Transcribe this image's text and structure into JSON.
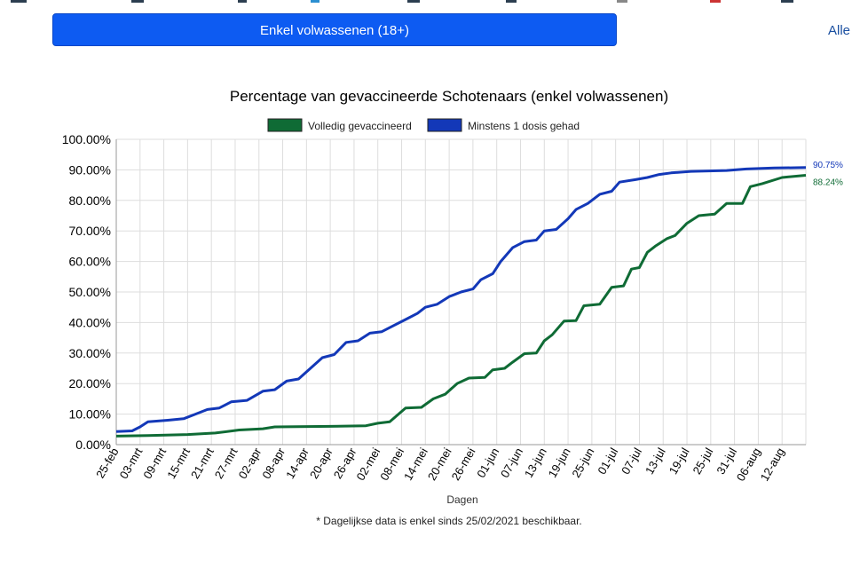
{
  "filter": {
    "button_label": "Enkel volwassenen (18+)",
    "all_label": "Alle"
  },
  "colors": {
    "button": "#0d5bf2",
    "full": "#0f6b35",
    "partial": "#1338b8",
    "grid": "#dddddd"
  },
  "chart_data": {
    "type": "line",
    "title": "Percentage van gevaccineerde Schotenaars (enkel volwassenen)",
    "xlabel": "Dagen",
    "ylabel": "",
    "footnote": "* Dagelijkse data is enkel sinds 25/02/2021 beschikbaar.",
    "legend_position": "top",
    "grid": true,
    "x_start": "2021-02-25",
    "x_end": "2021-08-18",
    "ylim": [
      0,
      100
    ],
    "y_ticks": [
      "0.00%",
      "10.00%",
      "20.00%",
      "30.00%",
      "40.00%",
      "50.00%",
      "60.00%",
      "70.00%",
      "80.00%",
      "90.00%",
      "100.00%"
    ],
    "x_ticks": [
      {
        "date": "2021-02-25",
        "label": "25-feb"
      },
      {
        "date": "2021-03-03",
        "label": "03-mrt"
      },
      {
        "date": "2021-03-09",
        "label": "09-mrt"
      },
      {
        "date": "2021-03-15",
        "label": "15-mrt"
      },
      {
        "date": "2021-03-21",
        "label": "21-mrt"
      },
      {
        "date": "2021-03-27",
        "label": "27-mrt"
      },
      {
        "date": "2021-04-02",
        "label": "02-apr"
      },
      {
        "date": "2021-04-08",
        "label": "08-apr"
      },
      {
        "date": "2021-04-14",
        "label": "14-apr"
      },
      {
        "date": "2021-04-20",
        "label": "20-apr"
      },
      {
        "date": "2021-04-26",
        "label": "26-apr"
      },
      {
        "date": "2021-05-02",
        "label": "02-mei"
      },
      {
        "date": "2021-05-08",
        "label": "08-mei"
      },
      {
        "date": "2021-05-14",
        "label": "14-mei"
      },
      {
        "date": "2021-05-20",
        "label": "20-mei"
      },
      {
        "date": "2021-05-26",
        "label": "26-mei"
      },
      {
        "date": "2021-06-01",
        "label": "01-jun"
      },
      {
        "date": "2021-06-07",
        "label": "07-jun"
      },
      {
        "date": "2021-06-13",
        "label": "13-jun"
      },
      {
        "date": "2021-06-19",
        "label": "19-jun"
      },
      {
        "date": "2021-06-25",
        "label": "25-jun"
      },
      {
        "date": "2021-07-01",
        "label": "01-jul"
      },
      {
        "date": "2021-07-07",
        "label": "07-jul"
      },
      {
        "date": "2021-07-13",
        "label": "13-jul"
      },
      {
        "date": "2021-07-19",
        "label": "19-jul"
      },
      {
        "date": "2021-07-25",
        "label": "25-jul"
      },
      {
        "date": "2021-07-31",
        "label": "31-jul"
      },
      {
        "date": "2021-08-06",
        "label": "06-aug"
      },
      {
        "date": "2021-08-12",
        "label": "12-aug"
      }
    ],
    "series": [
      {
        "name": "Volledig gevaccineerd",
        "color": "#0f6b35",
        "end_label": "88.24%",
        "points": [
          [
            "2021-02-25",
            2.8
          ],
          [
            "2021-03-05",
            3.0
          ],
          [
            "2021-03-15",
            3.3
          ],
          [
            "2021-03-22",
            3.8
          ],
          [
            "2021-03-28",
            4.8
          ],
          [
            "2021-04-03",
            5.2
          ],
          [
            "2021-04-06",
            5.8
          ],
          [
            "2021-04-20",
            6.0
          ],
          [
            "2021-04-29",
            6.2
          ],
          [
            "2021-05-02",
            7.0
          ],
          [
            "2021-05-05",
            7.5
          ],
          [
            "2021-05-09",
            12.0
          ],
          [
            "2021-05-13",
            12.2
          ],
          [
            "2021-05-16",
            15.0
          ],
          [
            "2021-05-19",
            16.5
          ],
          [
            "2021-05-22",
            20.0
          ],
          [
            "2021-05-25",
            21.8
          ],
          [
            "2021-05-29",
            22.0
          ],
          [
            "2021-05-31",
            24.5
          ],
          [
            "2021-06-03",
            25.0
          ],
          [
            "2021-06-05",
            27.0
          ],
          [
            "2021-06-08",
            29.8
          ],
          [
            "2021-06-11",
            30.0
          ],
          [
            "2021-06-13",
            34.0
          ],
          [
            "2021-06-15",
            36.0
          ],
          [
            "2021-06-18",
            40.5
          ],
          [
            "2021-06-21",
            40.6
          ],
          [
            "2021-06-23",
            45.5
          ],
          [
            "2021-06-27",
            46.0
          ],
          [
            "2021-06-30",
            51.5
          ],
          [
            "2021-07-03",
            52.0
          ],
          [
            "2021-07-05",
            57.5
          ],
          [
            "2021-07-07",
            58.0
          ],
          [
            "2021-07-09",
            63.0
          ],
          [
            "2021-07-11",
            65.0
          ],
          [
            "2021-07-14",
            67.5
          ],
          [
            "2021-07-16",
            68.5
          ],
          [
            "2021-07-19",
            72.5
          ],
          [
            "2021-07-22",
            75.0
          ],
          [
            "2021-07-26",
            75.5
          ],
          [
            "2021-07-29",
            79.0
          ],
          [
            "2021-08-02",
            79.0
          ],
          [
            "2021-08-04",
            84.5
          ],
          [
            "2021-08-07",
            85.5
          ],
          [
            "2021-08-12",
            87.5
          ],
          [
            "2021-08-18",
            88.24
          ]
        ]
      },
      {
        "name": "Minstens 1 dosis gehad",
        "color": "#1338b8",
        "end_label": "90.75%",
        "points": [
          [
            "2021-02-25",
            4.3
          ],
          [
            "2021-03-01",
            4.5
          ],
          [
            "2021-03-03",
            5.8
          ],
          [
            "2021-03-05",
            7.5
          ],
          [
            "2021-03-10",
            8.0
          ],
          [
            "2021-03-14",
            8.5
          ],
          [
            "2021-03-17",
            10.0
          ],
          [
            "2021-03-20",
            11.5
          ],
          [
            "2021-03-23",
            12.0
          ],
          [
            "2021-03-26",
            14.0
          ],
          [
            "2021-03-30",
            14.5
          ],
          [
            "2021-04-03",
            17.5
          ],
          [
            "2021-04-06",
            18.0
          ],
          [
            "2021-04-09",
            20.8
          ],
          [
            "2021-04-12",
            21.5
          ],
          [
            "2021-04-15",
            25.0
          ],
          [
            "2021-04-18",
            28.5
          ],
          [
            "2021-04-21",
            29.5
          ],
          [
            "2021-04-24",
            33.5
          ],
          [
            "2021-04-27",
            34.0
          ],
          [
            "2021-04-30",
            36.5
          ],
          [
            "2021-05-03",
            37.0
          ],
          [
            "2021-05-06",
            39.0
          ],
          [
            "2021-05-09",
            41.0
          ],
          [
            "2021-05-12",
            43.0
          ],
          [
            "2021-05-14",
            45.0
          ],
          [
            "2021-05-17",
            46.0
          ],
          [
            "2021-05-20",
            48.5
          ],
          [
            "2021-05-23",
            50.0
          ],
          [
            "2021-05-26",
            51.0
          ],
          [
            "2021-05-28",
            54.0
          ],
          [
            "2021-05-31",
            56.0
          ],
          [
            "2021-06-02",
            60.0
          ],
          [
            "2021-06-05",
            64.5
          ],
          [
            "2021-06-08",
            66.5
          ],
          [
            "2021-06-11",
            67.0
          ],
          [
            "2021-06-13",
            70.0
          ],
          [
            "2021-06-16",
            70.5
          ],
          [
            "2021-06-19",
            74.0
          ],
          [
            "2021-06-21",
            77.0
          ],
          [
            "2021-06-24",
            79.0
          ],
          [
            "2021-06-27",
            82.0
          ],
          [
            "2021-06-30",
            83.0
          ],
          [
            "2021-07-02",
            86.0
          ],
          [
            "2021-07-06",
            86.8
          ],
          [
            "2021-07-09",
            87.5
          ],
          [
            "2021-07-12",
            88.5
          ],
          [
            "2021-07-15",
            89.0
          ],
          [
            "2021-07-20",
            89.5
          ],
          [
            "2021-07-29",
            89.8
          ],
          [
            "2021-08-03",
            90.3
          ],
          [
            "2021-08-10",
            90.6
          ],
          [
            "2021-08-18",
            90.75
          ]
        ]
      }
    ]
  }
}
